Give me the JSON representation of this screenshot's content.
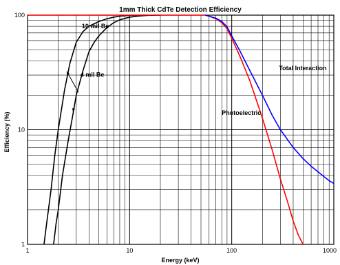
{
  "chart_data": {
    "type": "line",
    "title": "1mm Thick CdTe Detection Efficiency",
    "xlabel": "Energy (keV)",
    "ylabel": "Efficiency (%)",
    "x_scale": "log",
    "y_scale": "log",
    "xlim": [
      1,
      1000
    ],
    "ylim": [
      1,
      100
    ],
    "grid": true,
    "x_ticks": [
      1,
      10,
      100,
      1000
    ],
    "y_ticks": [
      1,
      10,
      100
    ],
    "colors": {
      "ten_mil": "#000000",
      "four_mil": "#000000",
      "photoelectric": "#ff0000",
      "total": "#0000ff"
    },
    "series": [
      {
        "key": "ten_mil",
        "name": "10 mil Be",
        "x": [
          1.45,
          1.55,
          1.7,
          1.85,
          2.0,
          2.3,
          2.6,
          3.0,
          3.5,
          4.0,
          5.0,
          6.0,
          7.0,
          8.0,
          10.0,
          15.0
        ],
        "y": [
          1.0,
          1.6,
          3.0,
          6.0,
          10.0,
          22.0,
          38.0,
          58.0,
          72.0,
          80.0,
          88.0,
          93.0,
          96.0,
          98.0,
          99.5,
          100.0
        ]
      },
      {
        "key": "four_mil",
        "name": "4 mil Be",
        "x": [
          1.8,
          1.9,
          2.0,
          2.2,
          2.5,
          2.8,
          3.0,
          3.5,
          4.0,
          4.5,
          5.0,
          6.0,
          7.0,
          8.0,
          10.0,
          12.0,
          15.0,
          20.0
        ],
        "y": [
          1.0,
          1.5,
          2.0,
          4.0,
          8.0,
          14.0,
          20.0,
          33.0,
          48.0,
          58.0,
          66.0,
          78.0,
          86.0,
          91.0,
          96.0,
          98.0,
          99.5,
          100.0
        ]
      },
      {
        "key": "photoelectric",
        "name": "Photoelectric",
        "x": [
          1.0,
          20.0,
          55.0,
          60.0,
          70.0,
          80.0,
          90.0,
          100.0,
          120.0,
          150.0,
          200.0,
          250.0,
          300.0,
          350.0,
          400.0,
          450.0,
          500.0
        ],
        "y": [
          100.0,
          100.0,
          100.0,
          98.0,
          93.0,
          86.0,
          76.0,
          63.0,
          44.0,
          27.0,
          12.6,
          6.6,
          3.7,
          2.4,
          1.6,
          1.2,
          1.0
        ]
      },
      {
        "key": "total",
        "name": "Total Interaction",
        "x": [
          55.0,
          60.0,
          70.0,
          80.0,
          90.0,
          100.0,
          120.0,
          150.0,
          200.0,
          250.0,
          300.0,
          400.0,
          500.0,
          600.0,
          700.0,
          800.0,
          900.0,
          1000.0
        ],
        "y": [
          100.0,
          98.0,
          94.0,
          88.0,
          79.0,
          66.0,
          49.0,
          33.0,
          20.0,
          13.3,
          10.0,
          7.0,
          5.6,
          4.8,
          4.3,
          3.9,
          3.6,
          3.4
        ]
      }
    ],
    "annotations": [
      {
        "text": "10 mil Be",
        "x": 3.4,
        "y": 77.0
      },
      {
        "text": "4 mil Be",
        "x": 3.3,
        "y": 29.0
      },
      {
        "text": "Photoelectric",
        "x": 80.0,
        "y": 13.5
      },
      {
        "text": "Total Interaction",
        "x": 290.0,
        "y": 33.0
      }
    ]
  }
}
